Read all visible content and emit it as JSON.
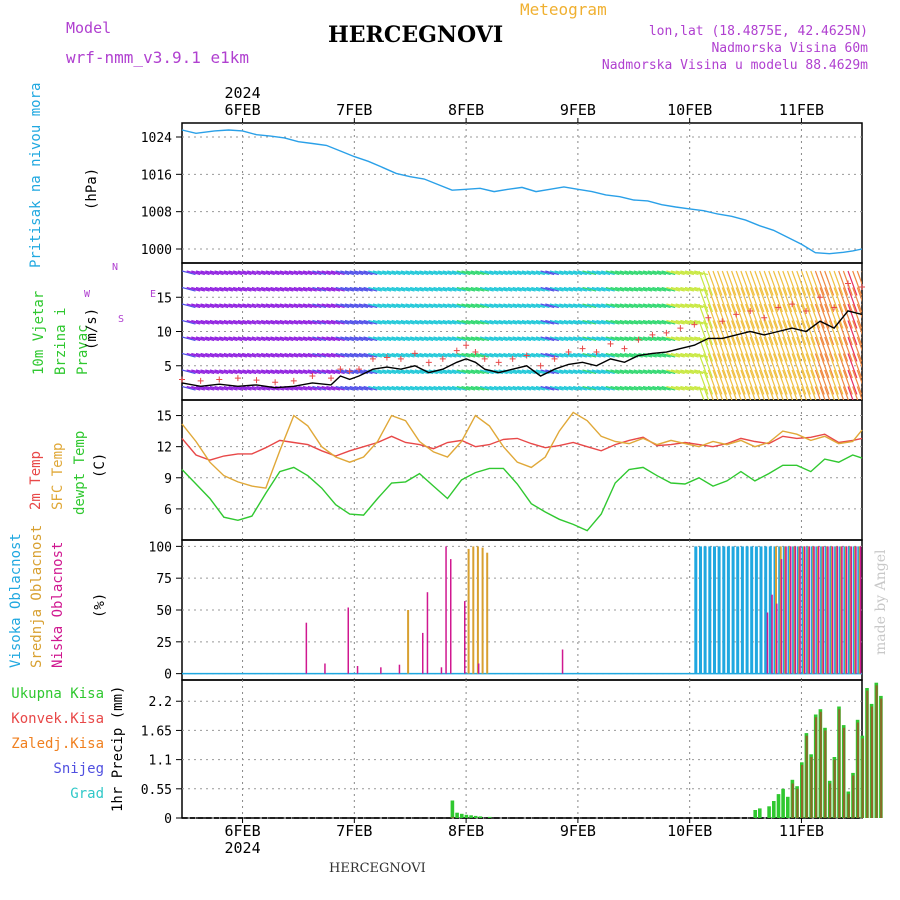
{
  "header": {
    "model_label": "Model",
    "model_name": "wrf-nmm_v3.9.1  e1km",
    "meteogram_label": "Meteogram",
    "station": "HERCEGNOVI",
    "lonlat": "lon,lat (18.4875E, 42.4625N)",
    "elevation": "Nadmorska Visina 60m",
    "model_elevation": "Nadmorska Visina u modelu 88.4629m",
    "footer_station": "HERCEGNOVI",
    "credit": "made by Angel"
  },
  "colors": {
    "pressure": "#2aa0e8",
    "temp2m": "#e84848",
    "sfc_temp": "#e0a838",
    "dewpoint": "#30c830",
    "high_cloud": "#20a8e0",
    "mid_cloud": "#d8a030",
    "low_cloud": "#d01890",
    "total_precip": "#30c830",
    "conv_precip": "#e84848",
    "frozen": "#f08020",
    "snow": "#5050e0",
    "hail": "#30c8c8",
    "header_mag": "#b040d0",
    "meteogram_orange": "#f0b030"
  },
  "time_axis": {
    "year": "2024",
    "days": [
      "6FEB",
      "7FEB",
      "8FEB",
      "9FEB",
      "10FEB",
      "11FEB"
    ],
    "start_hour_offset": -13,
    "end_hour_offset": 133
  },
  "chart_data": [
    {
      "type": "line",
      "panel": "pressure",
      "ylabel": "Pritisak na nivou mora",
      "unit": "(hPa)",
      "yticks": [
        "1024",
        "1016",
        "1008",
        "1000"
      ],
      "ylim": [
        997,
        1027
      ],
      "x_hours": [
        -13,
        -10,
        -6,
        -3,
        0,
        3,
        6,
        9,
        12,
        15,
        18,
        21,
        24,
        27,
        30,
        33,
        36,
        39,
        42,
        45,
        48,
        51,
        54,
        57,
        60,
        63,
        66,
        69,
        72,
        75,
        78,
        81,
        84,
        87,
        90,
        93,
        96,
        99,
        102,
        105,
        108,
        111,
        114,
        117,
        120,
        123,
        126,
        129,
        131,
        133
      ],
      "values": [
        1025.5,
        1024.8,
        1025.3,
        1025.5,
        1025.3,
        1024.5,
        1024.2,
        1023.8,
        1023.0,
        1022.6,
        1022.2,
        1021.0,
        1019.8,
        1018.8,
        1017.5,
        1016.2,
        1015.5,
        1015.0,
        1013.8,
        1012.6,
        1012.8,
        1013.0,
        1012.3,
        1012.8,
        1013.2,
        1012.3,
        1012.8,
        1013.3,
        1012.8,
        1012.3,
        1011.6,
        1011.2,
        1010.5,
        1010.3,
        1009.5,
        1009.0,
        1008.6,
        1008.2,
        1007.5,
        1007.0,
        1006.2,
        1005.0,
        1004.0,
        1002.5,
        1001.0,
        999.2,
        999.0,
        999.3,
        999.6,
        1000.0
      ]
    },
    {
      "type": "line",
      "panel": "wind",
      "ylabel": "10m Vjetar Brzina i Pravac",
      "unit": "(m/s)",
      "compass": [
        "N",
        "E",
        "S",
        "W"
      ],
      "yticks": [
        "15",
        "10",
        "5"
      ],
      "ylim": [
        0,
        20
      ],
      "x_hours": [
        -13,
        -9,
        -5,
        -1,
        3,
        7,
        11,
        15,
        19,
        21,
        23,
        25,
        28,
        31,
        34,
        37,
        40,
        43,
        46,
        48,
        50,
        52,
        55,
        58,
        61,
        64,
        67,
        70,
        73,
        76,
        79,
        82,
        85,
        88,
        91,
        94,
        97,
        100,
        103,
        106,
        109,
        112,
        115,
        118,
        121,
        124,
        127,
        130,
        133
      ],
      "values": [
        2.5,
        2.0,
        2.3,
        2.0,
        2.2,
        1.8,
        2.0,
        2.5,
        2.2,
        3.5,
        3.0,
        3.5,
        4.5,
        4.8,
        4.5,
        5.0,
        4.0,
        4.5,
        5.5,
        6.0,
        5.5,
        4.5,
        4.0,
        4.5,
        5.0,
        3.5,
        4.5,
        5.2,
        5.5,
        5.0,
        6.0,
        5.5,
        6.5,
        6.8,
        7.0,
        7.5,
        8.0,
        9.0,
        9.0,
        9.5,
        10.0,
        9.5,
        10.0,
        10.5,
        10.0,
        11.5,
        10.5,
        13.0,
        12.5
      ],
      "gust_values": [
        3.0,
        2.8,
        3.0,
        3.2,
        2.9,
        2.6,
        2.8,
        3.5,
        3.2,
        4.5,
        4.2,
        4.5,
        6.0,
        6.2,
        6.0,
        6.8,
        5.5,
        6.0,
        7.2,
        8.0,
        7.0,
        6.0,
        5.5,
        6.0,
        6.5,
        5.0,
        6.0,
        7.0,
        7.5,
        7.0,
        8.2,
        7.5,
        8.8,
        9.5,
        9.8,
        10.5,
        11.0,
        12.0,
        11.5,
        12.5,
        13.0,
        12.0,
        13.5,
        14.0,
        13.0,
        15.0,
        13.5,
        17.0,
        16.5
      ]
    },
    {
      "type": "line",
      "panel": "temperature",
      "series_labels": [
        "2m Temp",
        "SFC Temp",
        "dewpt Temp"
      ],
      "unit": "(C)",
      "yticks": [
        "15",
        "12",
        "9",
        "6"
      ],
      "ylim": [
        3,
        16.5
      ],
      "x_hours": [
        -13,
        -10,
        -7,
        -4,
        -1,
        2,
        5,
        8,
        11,
        14,
        17,
        20,
        23,
        26,
        29,
        32,
        35,
        38,
        41,
        44,
        47,
        50,
        53,
        56,
        59,
        62,
        65,
        68,
        71,
        74,
        77,
        80,
        83,
        86,
        89,
        92,
        95,
        98,
        101,
        104,
        107,
        110,
        113,
        116,
        119,
        122,
        125,
        128,
        131,
        133
      ],
      "series": [
        {
          "name": "2m Temp",
          "values": [
            12.8,
            11.2,
            10.7,
            11.1,
            11.3,
            11.3,
            11.9,
            12.6,
            12.4,
            12.2,
            11.6,
            11.1,
            11.6,
            12.0,
            12.4,
            13.0,
            12.4,
            12.2,
            11.8,
            12.4,
            12.6,
            12.0,
            12.2,
            12.7,
            12.8,
            12.3,
            11.9,
            12.1,
            12.4,
            12.0,
            11.6,
            12.2,
            12.6,
            12.9,
            12.1,
            12.2,
            12.4,
            12.2,
            12.0,
            12.3,
            12.8,
            12.5,
            12.3,
            13.0,
            12.8,
            12.9,
            13.2,
            12.4,
            12.6,
            12.8
          ]
        },
        {
          "name": "SFC Temp",
          "values": [
            14.2,
            12.5,
            10.5,
            9.2,
            8.6,
            8.2,
            8.0,
            11.6,
            15.0,
            14.0,
            12.0,
            11.0,
            10.5,
            11.0,
            12.5,
            15.0,
            14.5,
            12.5,
            11.5,
            11.0,
            12.5,
            15.0,
            14.0,
            12.0,
            10.5,
            10.0,
            11.0,
            13.5,
            15.3,
            14.5,
            13.0,
            12.5,
            12.3,
            12.8,
            12.2,
            12.6,
            12.3,
            12.0,
            12.5,
            12.2,
            12.6,
            12.0,
            12.4,
            13.5,
            13.2,
            12.6,
            13.0,
            12.3,
            12.5,
            13.6
          ]
        },
        {
          "name": "dewpt Temp",
          "values": [
            9.8,
            8.4,
            7.0,
            5.2,
            4.9,
            5.3,
            7.5,
            9.6,
            10.0,
            9.2,
            8.0,
            6.4,
            5.5,
            5.4,
            7.0,
            8.5,
            8.6,
            9.4,
            8.2,
            7.0,
            8.8,
            9.5,
            9.9,
            9.9,
            8.4,
            6.5,
            5.7,
            5.0,
            4.5,
            3.9,
            5.5,
            8.5,
            9.8,
            10.0,
            9.2,
            8.5,
            8.4,
            9.0,
            8.2,
            8.7,
            9.6,
            8.7,
            9.4,
            10.2,
            10.2,
            9.6,
            10.8,
            10.5,
            11.2,
            10.9
          ]
        }
      ]
    },
    {
      "type": "bar",
      "panel": "clouds",
      "series_labels": [
        "Visoka Oblacnost",
        "Srednja Oblacnost",
        "Niska Oblacnost"
      ],
      "unit": "(%)",
      "yticks": [
        "100",
        "75",
        "50",
        "25",
        "0"
      ],
      "ylim": [
        -5,
        105
      ],
      "high": [
        [
          97,
          100
        ],
        [
          98,
          100
        ],
        [
          99,
          100
        ],
        [
          100,
          100
        ],
        [
          101,
          100
        ],
        [
          102,
          100
        ],
        [
          103,
          100
        ],
        [
          104,
          100
        ],
        [
          105,
          100
        ],
        [
          106,
          100
        ],
        [
          107,
          100
        ],
        [
          108,
          100
        ],
        [
          109,
          100
        ],
        [
          110,
          100
        ],
        [
          111,
          100
        ],
        [
          112,
          100
        ],
        [
          113,
          100
        ],
        [
          114,
          100
        ],
        [
          115,
          100
        ],
        [
          116,
          100
        ],
        [
          117,
          100
        ],
        [
          118,
          100
        ],
        [
          119,
          100
        ],
        [
          120,
          100
        ],
        [
          121,
          100
        ],
        [
          122,
          100
        ],
        [
          123,
          100
        ],
        [
          124,
          100
        ],
        [
          125,
          100
        ],
        [
          126,
          100
        ],
        [
          127,
          100
        ],
        [
          128,
          100
        ],
        [
          129,
          100
        ],
        [
          130,
          100
        ],
        [
          131,
          100
        ],
        [
          132,
          100
        ]
      ],
      "mid": [
        [
          35,
          50
        ],
        [
          48,
          98
        ],
        [
          49,
          100
        ],
        [
          50,
          100
        ],
        [
          51,
          99
        ],
        [
          52,
          95
        ],
        [
          114,
          100
        ],
        [
          115,
          100
        ],
        [
          116,
          100
        ],
        [
          117,
          100
        ],
        [
          118,
          100
        ],
        [
          119,
          100
        ],
        [
          120,
          100
        ],
        [
          121,
          100
        ],
        [
          122,
          100
        ],
        [
          123,
          100
        ],
        [
          124,
          100
        ],
        [
          125,
          100
        ],
        [
          126,
          100
        ],
        [
          127,
          100
        ],
        [
          128,
          100
        ],
        [
          129,
          100
        ],
        [
          130,
          100
        ],
        [
          131,
          100
        ],
        [
          132,
          100
        ]
      ],
      "low": [
        [
          13,
          40
        ],
        [
          17,
          8
        ],
        [
          22,
          52
        ],
        [
          24,
          6
        ],
        [
          29,
          5
        ],
        [
          33,
          7
        ],
        [
          38,
          32
        ],
        [
          39,
          64
        ],
        [
          42,
          5
        ],
        [
          43,
          100
        ],
        [
          44,
          90
        ],
        [
          47,
          57
        ],
        [
          50,
          8
        ],
        [
          68,
          19
        ],
        [
          112,
          48
        ],
        [
          113,
          62
        ],
        [
          114,
          55
        ],
        [
          115,
          90
        ],
        [
          116,
          100
        ],
        [
          117,
          100
        ],
        [
          118,
          100
        ],
        [
          119,
          100
        ],
        [
          120,
          100
        ],
        [
          121,
          100
        ],
        [
          122,
          100
        ],
        [
          123,
          100
        ],
        [
          124,
          100
        ],
        [
          125,
          100
        ],
        [
          126,
          100
        ],
        [
          127,
          100
        ],
        [
          128,
          100
        ],
        [
          129,
          100
        ],
        [
          130,
          100
        ],
        [
          131,
          100
        ],
        [
          132,
          100
        ]
      ]
    },
    {
      "type": "bar",
      "panel": "precip",
      "series_labels": [
        "Ukupna Kisa",
        "Konvek.Kisa",
        "Zaledj.Kisa",
        "Snijeg",
        "Grad"
      ],
      "unit": "1hr Precip (mm)",
      "yticks": [
        "2.2",
        "1.65",
        "1.1",
        "0.55",
        "0"
      ],
      "ylim": [
        0,
        2.6
      ],
      "total": [
        [
          45,
          0.33
        ],
        [
          46,
          0.1
        ],
        [
          47,
          0.08
        ],
        [
          48,
          0.06
        ],
        [
          49,
          0.05
        ],
        [
          50,
          0.04
        ],
        [
          51,
          0.03
        ],
        [
          53,
          0.02
        ],
        [
          110,
          0.15
        ],
        [
          111,
          0.18
        ],
        [
          113,
          0.22
        ],
        [
          114,
          0.32
        ],
        [
          115,
          0.45
        ],
        [
          116,
          0.55
        ],
        [
          117,
          0.4
        ],
        [
          118,
          0.72
        ],
        [
          119,
          0.6
        ],
        [
          120,
          1.05
        ],
        [
          121,
          1.6
        ],
        [
          122,
          1.2
        ],
        [
          123,
          1.95
        ],
        [
          124,
          2.05
        ],
        [
          125,
          1.7
        ],
        [
          126,
          0.7
        ],
        [
          127,
          1.15
        ],
        [
          128,
          2.1
        ],
        [
          129,
          1.75
        ],
        [
          130,
          0.5
        ],
        [
          131,
          0.85
        ],
        [
          132,
          1.85
        ],
        [
          133,
          1.55
        ],
        [
          134,
          2.45
        ],
        [
          135,
          2.15
        ],
        [
          136,
          2.55
        ],
        [
          137,
          2.3
        ]
      ],
      "conv": [
        [
          45,
          0.02
        ],
        [
          118,
          0.65
        ],
        [
          119,
          0.55
        ],
        [
          120,
          1.0
        ],
        [
          121,
          1.55
        ],
        [
          122,
          1.15
        ],
        [
          123,
          1.9
        ],
        [
          124,
          2.0
        ],
        [
          125,
          1.65
        ],
        [
          126,
          0.65
        ],
        [
          127,
          1.1
        ],
        [
          128,
          2.05
        ],
        [
          129,
          1.7
        ],
        [
          130,
          0.45
        ],
        [
          131,
          0.8
        ],
        [
          132,
          1.8
        ],
        [
          133,
          1.5
        ],
        [
          134,
          2.4
        ],
        [
          135,
          2.1
        ],
        [
          136,
          2.5
        ],
        [
          137,
          2.25
        ]
      ]
    }
  ]
}
